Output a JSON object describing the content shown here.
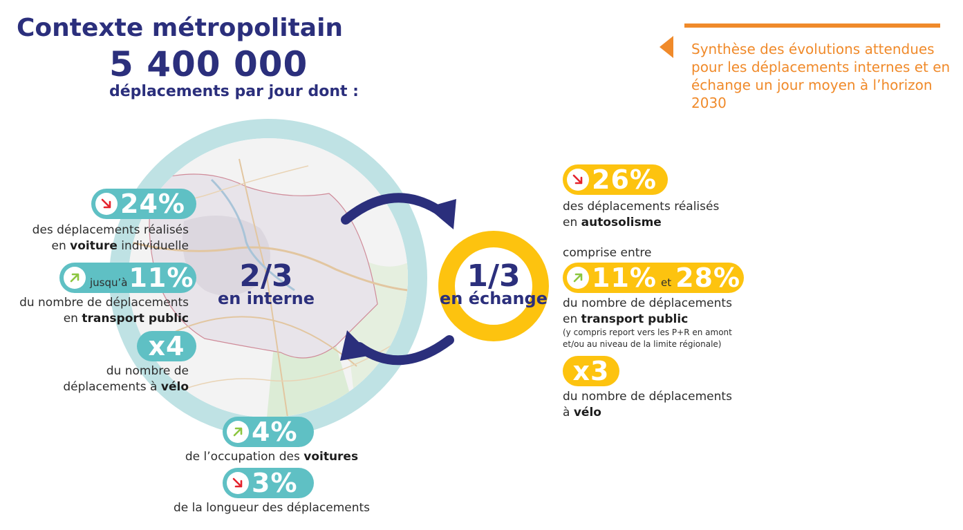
{
  "header": {
    "title": "Contexte métropolitain",
    "big_number": "5 400 000",
    "subtitle": "déplacements par jour dont :"
  },
  "synthesis": {
    "text": "Synthèse des évolutions attendues pour les déplacements internes et en échange un jour moyen à l’horizon 2030"
  },
  "internal": {
    "fraction": "2/3",
    "label": "en interne",
    "items": [
      {
        "trend": "down",
        "value": "24%",
        "line1": "des déplacements réalisés",
        "line2_pre": "en ",
        "line2_bold": "voiture",
        "line2_post": " individuelle"
      },
      {
        "trend": "up",
        "prefix": "jusqu’à",
        "value": "11%",
        "line1": "du nombre de déplacements",
        "line2_pre": "en ",
        "line2_bold": "transport public",
        "line2_post": ""
      },
      {
        "trend": "none",
        "value": "x4",
        "line1": "du nombre de",
        "line2_pre": "déplacements à ",
        "line2_bold": "vélo",
        "line2_post": ""
      },
      {
        "trend": "up",
        "value": "4%",
        "line1_pre": "de l’occupation des ",
        "line1_bold": "voitures"
      },
      {
        "trend": "down",
        "value": "3%",
        "line1": "de la longueur des déplacements"
      }
    ]
  },
  "exchange": {
    "fraction": "1/3",
    "label": "en échange",
    "items": [
      {
        "trend": "down",
        "value": "26%",
        "line1": "des déplacements réalisés",
        "line2_pre": "en ",
        "line2_bold": "autosolisme"
      },
      {
        "intro": "comprise entre",
        "trend": "up",
        "value_a": "11%",
        "joiner": "et",
        "value_b": "28%",
        "line1": "du nombre de déplacements",
        "line2_pre": "en ",
        "line2_bold": "transport public",
        "note1": "(y compris report vers les P+R en amont",
        "note2": "et/ou au niveau de la limite régionale)"
      },
      {
        "trend": "none",
        "value": "x3",
        "line1": "du nombre de déplacements",
        "line2_pre": "à ",
        "line2_bold": "vélo"
      }
    ]
  },
  "colors": {
    "navy": "#2b2f7c",
    "teal": "#5fc0c4",
    "teal_ring": "#bfe2e4",
    "yellow": "#fdc30f",
    "orange": "#f08a2a",
    "arrow_up": "#8cc63f",
    "arrow_down": "#e4232d"
  },
  "icons": {
    "trend_up": "arrow-up-right-icon",
    "trend_down": "arrow-down-right-icon",
    "cycle": "circular-arrows-icon"
  }
}
